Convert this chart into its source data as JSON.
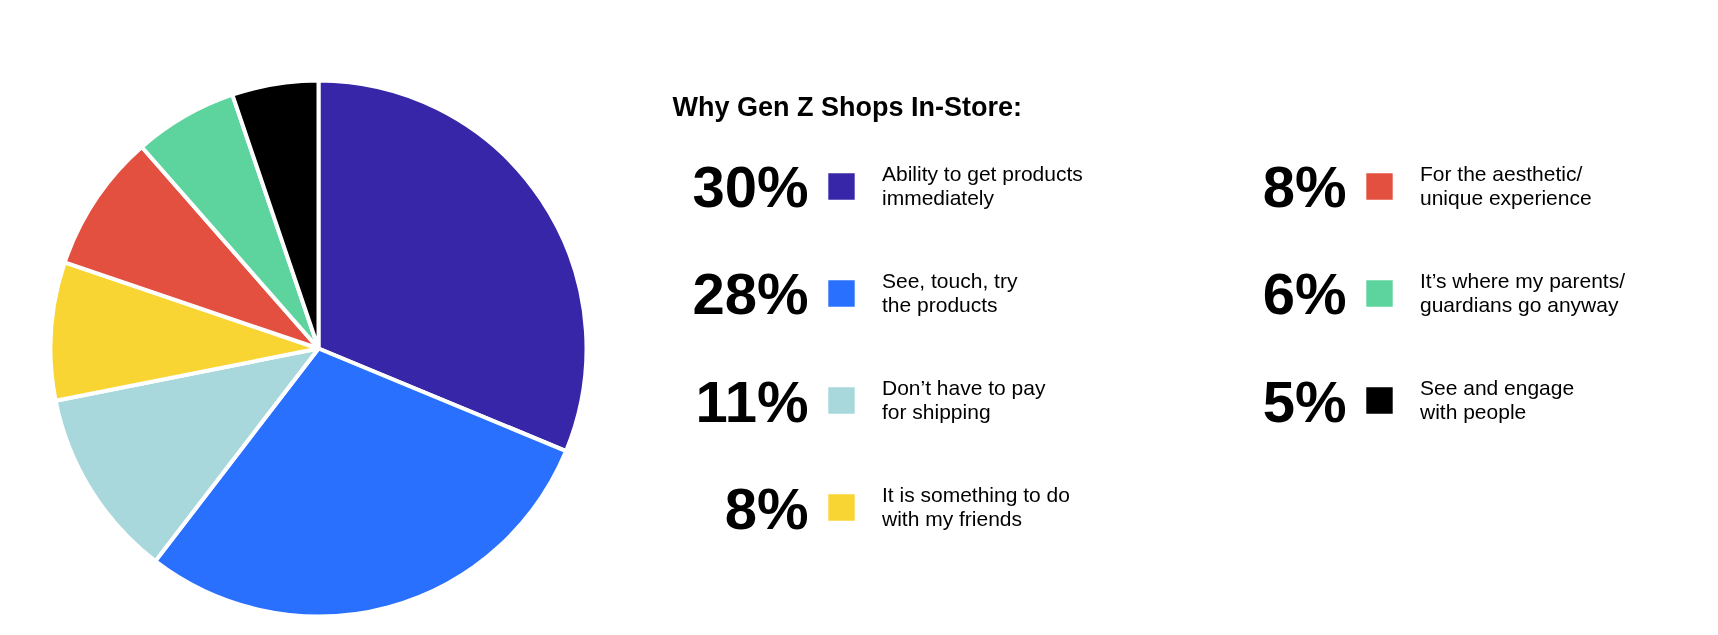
{
  "chart_data": {
    "type": "pie",
    "title": "Why Gen Z Shops In-Store:",
    "categories": [
      "Ability to get products\nimmediately",
      "See, touch, try\nthe products",
      "Don’t have to pay\nfor shipping",
      "It is something to do\nwith my friends",
      "For the aesthetic/\nunique experience",
      "It’s where my parents/\nguardians go anyway",
      "See and engage\nwith people"
    ],
    "values": [
      30,
      28,
      11,
      8,
      8,
      6,
      5
    ],
    "value_labels": [
      "30%",
      "28%",
      "11%",
      "8%",
      "8%",
      "6%",
      "5%"
    ],
    "colors": [
      "#3727a8",
      "#2970ff",
      "#a8d8dc",
      "#f9d534",
      "#e4503f",
      "#5dd39e",
      "#000000"
    ],
    "legend": "right"
  }
}
